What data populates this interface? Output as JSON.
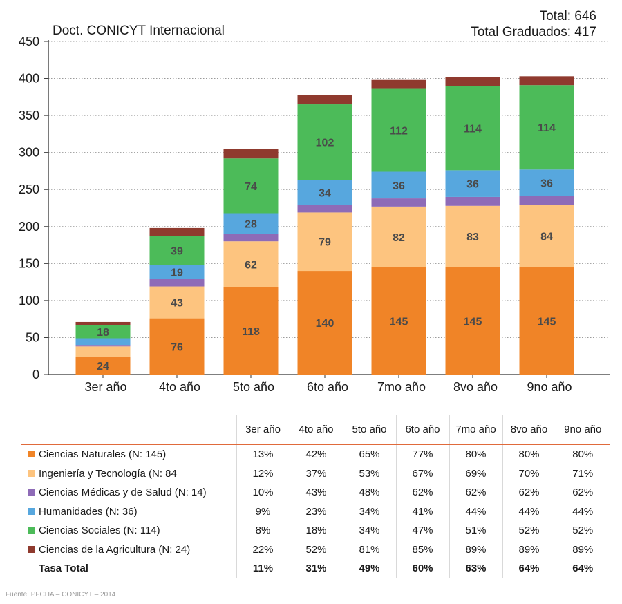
{
  "title": "Doct. CONICYT Internacional",
  "totals": {
    "total": "Total: 646",
    "graduados": "Total Graduados: 417"
  },
  "source": "Fuente: PFCHA – CONICYT – 2014",
  "colors": {
    "naturales": "#f08427",
    "ingenieria": "#fdc47f",
    "medicas": "#8e6bb7",
    "humanidades": "#57a7de",
    "sociales": "#4cbb59",
    "agricultura": "#8f3a2e"
  },
  "chart_data": {
    "type": "bar",
    "stacked": true,
    "categories": [
      "3er año",
      "4to año",
      "5to año",
      "6to año",
      "7mo año",
      "8vo año",
      "9no año"
    ],
    "ylim": [
      0,
      450
    ],
    "yticks": [
      0,
      50,
      100,
      150,
      200,
      250,
      300,
      350,
      400,
      450
    ],
    "grid": true,
    "series": [
      {
        "key": "naturales",
        "values": [
          24,
          76,
          118,
          140,
          145,
          145,
          145
        ],
        "labels": [
          "24",
          "76",
          "118",
          "140",
          "145",
          "145",
          "145"
        ]
      },
      {
        "key": "ingenieria",
        "values": [
          14,
          43,
          62,
          79,
          82,
          83,
          84
        ],
        "labels": [
          "",
          "43",
          "62",
          "79",
          "82",
          "83",
          "84"
        ]
      },
      {
        "key": "medicas",
        "values": [
          2,
          10,
          10,
          10,
          11,
          12,
          12
        ],
        "labels": [
          "",
          "",
          "",
          "",
          "",
          "",
          ""
        ]
      },
      {
        "key": "humanidades",
        "values": [
          9,
          19,
          28,
          34,
          36,
          36,
          36
        ],
        "labels": [
          "",
          "19",
          "28",
          "34",
          "36",
          "36",
          "36"
        ]
      },
      {
        "key": "sociales",
        "values": [
          18,
          39,
          74,
          102,
          112,
          114,
          114
        ],
        "labels": [
          "18",
          "39",
          "74",
          "102",
          "112",
          "114",
          "114"
        ]
      },
      {
        "key": "agricultura",
        "values": [
          4,
          11,
          13,
          13,
          12,
          12,
          12
        ],
        "labels": [
          "",
          "",
          "",
          "",
          "",
          "",
          ""
        ]
      }
    ]
  },
  "table": {
    "headers": [
      "3er año",
      "4to año",
      "5to año",
      "6to año",
      "7mo año",
      "8vo año",
      "9no año"
    ],
    "rows": [
      {
        "label": "Ciencias Naturales (N: 145)",
        "color": "#f08427",
        "values": [
          "13%",
          "42%",
          "65%",
          "77%",
          "80%",
          "80%",
          "80%"
        ]
      },
      {
        "label": "Ingeniería y Tecnología (N: 84",
        "color": "#fdc47f",
        "values": [
          "12%",
          "37%",
          "53%",
          "67%",
          "69%",
          "70%",
          "71%"
        ]
      },
      {
        "label": "Ciencias Médicas y de Salud (N: 14)",
        "color": "#8e6bb7",
        "values": [
          "10%",
          "43%",
          "48%",
          "62%",
          "62%",
          "62%",
          "62%"
        ]
      },
      {
        "label": "Humanidades (N: 36)",
        "color": "#57a7de",
        "values": [
          "9%",
          "23%",
          "34%",
          "41%",
          "44%",
          "44%",
          "44%"
        ]
      },
      {
        "label": "Ciencias Sociales (N: 114)",
        "color": "#4cbb59",
        "values": [
          "8%",
          "18%",
          "34%",
          "47%",
          "51%",
          "52%",
          "52%"
        ]
      },
      {
        "label": "Ciencias de la Agricultura (N: 24)",
        "color": "#8f3a2e",
        "values": [
          "22%",
          "52%",
          "81%",
          "85%",
          "89%",
          "89%",
          "89%"
        ]
      }
    ],
    "total": {
      "label": "Tasa Total",
      "values": [
        "11%",
        "31%",
        "49%",
        "60%",
        "63%",
        "64%",
        "64%"
      ]
    }
  }
}
